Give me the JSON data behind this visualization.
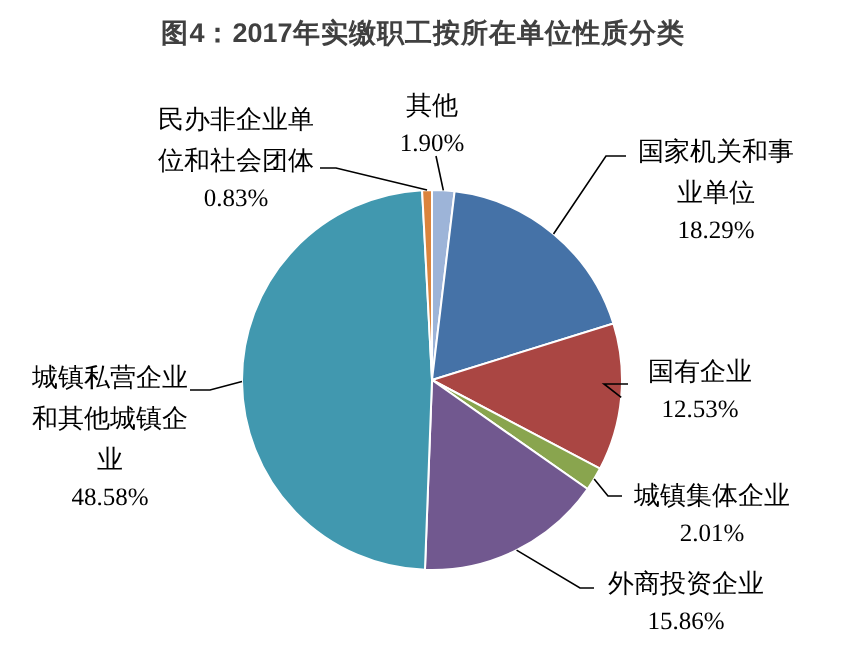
{
  "chart_data": {
    "type": "pie",
    "title": "图4：2017年实缴职工按所在单位性质分类",
    "categories": [
      "其他",
      "国家机关和事业单位",
      "国有企业",
      "城镇集体企业",
      "外商投资企业",
      "城镇私营企业和其他城镇企业",
      "民办非企业单位和社会团体"
    ],
    "values": [
      1.9,
      18.29,
      12.53,
      2.01,
      15.86,
      48.58,
      0.83
    ],
    "value_labels": [
      "1.90%",
      "18.29%",
      "12.53%",
      "2.01%",
      "15.86%",
      "48.58%",
      "0.83%"
    ],
    "colors": [
      "#9db4d8",
      "#4572a7",
      "#aa4643",
      "#89a54e",
      "#71588f",
      "#4198af",
      "#db843d"
    ],
    "legend": false
  }
}
